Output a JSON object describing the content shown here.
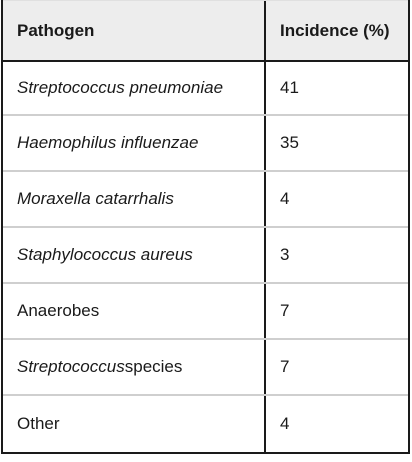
{
  "table": {
    "headers": {
      "pathogen": "Pathogen",
      "incidence": "Incidence (%)"
    },
    "rows": [
      {
        "pathogen_italic": "Streptococcus pneumoniae",
        "pathogen_plain": "",
        "incidence": "41"
      },
      {
        "pathogen_italic": "Haemophilus influenzae",
        "pathogen_plain": "",
        "incidence": "35"
      },
      {
        "pathogen_italic": "Moraxella catarrhalis",
        "pathogen_plain": "",
        "incidence": "4"
      },
      {
        "pathogen_italic": "Staphylococcus aureus",
        "pathogen_plain": "",
        "incidence": "3"
      },
      {
        "pathogen_italic": "",
        "pathogen_plain": "Anaerobes",
        "incidence": "7"
      },
      {
        "pathogen_italic": "Streptococcus",
        "pathogen_plain": " species",
        "incidence": "7"
      },
      {
        "pathogen_italic": "",
        "pathogen_plain": "Other",
        "incidence": "4"
      }
    ]
  }
}
